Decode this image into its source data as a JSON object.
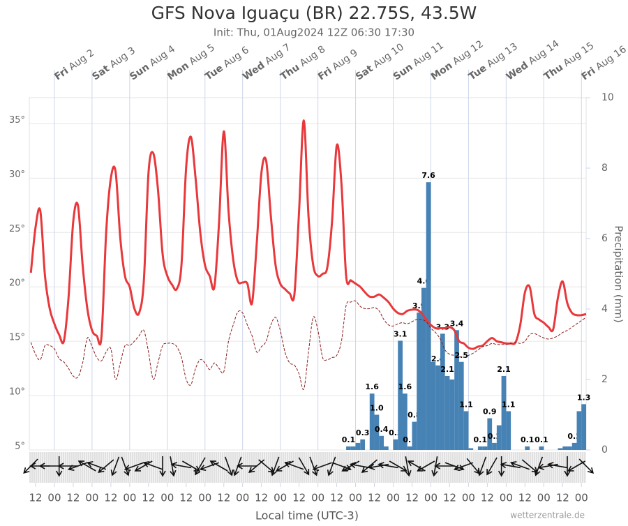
{
  "chart_data": {
    "type": "line",
    "title": "GFS Nova Iguaçu (BR) 22.75S, 43.5W",
    "subtitle": "Init: Thu, 01Aug2024 12Z 06:30 17:30",
    "x_label": "Local time (UTC-3)",
    "y2_label": "Precipitation (mm)",
    "source": "wetterzentrale.de",
    "xlim": [
      8,
      363
    ],
    "ylim": [
      5,
      37.4
    ],
    "y2lim": [
      0,
      10
    ],
    "grid": true,
    "yticks": [
      {
        "value": 5,
        "label": "5°"
      },
      {
        "value": 10,
        "label": "10°"
      },
      {
        "value": 15,
        "label": "15°"
      },
      {
        "value": 20,
        "label": "20°"
      },
      {
        "value": 25,
        "label": "25°"
      },
      {
        "value": 30,
        "label": "30°"
      },
      {
        "value": 35,
        "label": "35°"
      }
    ],
    "y2ticks": [
      0,
      2,
      4,
      6,
      8,
      10
    ],
    "xticks_top": [
      {
        "value": 24,
        "label": "Fri Aug 2"
      },
      {
        "value": 48,
        "label": "Sat Aug 3"
      },
      {
        "value": 72,
        "label": "Sun Aug 4"
      },
      {
        "value": 96,
        "label": "Mon Aug 5"
      },
      {
        "value": 120,
        "label": "Tue Aug 6"
      },
      {
        "value": 144,
        "label": "Wed Aug 7"
      },
      {
        "value": 168,
        "label": "Thu Aug 8"
      },
      {
        "value": 192,
        "label": "Fri Aug 9"
      },
      {
        "value": 216,
        "label": "Sat Aug 10"
      },
      {
        "value": 240,
        "label": "Sun Aug 11"
      },
      {
        "value": 264,
        "label": "Mon Aug 12"
      },
      {
        "value": 288,
        "label": "Tue Aug 13"
      },
      {
        "value": 312,
        "label": "Wed Aug 14"
      },
      {
        "value": 336,
        "label": "Thu Aug 15"
      },
      {
        "value": 360,
        "label": "Fri Aug 16"
      }
    ],
    "xticks": [
      12,
      {
        "value": 24,
        "label": "00"
      },
      {
        "value": 36,
        "label": "12"
      },
      {
        "value": 48,
        "label": "00"
      },
      {
        "value": 60,
        "label": "12"
      },
      {
        "value": 72,
        "label": "00"
      },
      {
        "value": 84,
        "label": "12"
      },
      {
        "value": 96,
        "label": "00"
      },
      {
        "value": 108,
        "label": "12"
      },
      {
        "value": 120,
        "label": "00"
      },
      {
        "value": 132,
        "label": "12"
      },
      {
        "value": 144,
        "label": "00"
      },
      {
        "value": 156,
        "label": "12"
      },
      {
        "value": 168,
        "label": "00"
      },
      {
        "value": 180,
        "label": "12"
      },
      {
        "value": 192,
        "label": "00"
      },
      {
        "value": 204,
        "label": "12"
      },
      {
        "value": 216,
        "label": "00"
      },
      {
        "value": 228,
        "label": "12"
      },
      {
        "value": 240,
        "label": "00"
      },
      {
        "value": 252,
        "label": "12"
      },
      {
        "value": 264,
        "label": "00"
      },
      {
        "value": 276,
        "label": "12"
      },
      {
        "value": 288,
        "label": "00"
      },
      {
        "value": 300,
        "label": "12"
      },
      {
        "value": 312,
        "label": "00"
      },
      {
        "value": 324,
        "label": "12"
      },
      {
        "value": 336,
        "label": "00"
      },
      {
        "value": 348,
        "label": "12"
      },
      {
        "value": 360,
        "label": "00"
      }
    ],
    "series": [
      {
        "type": "line",
        "color": "#e8383b",
        "dashed": false,
        "x": [
          9,
          12,
          15,
          18,
          21,
          24,
          27,
          30,
          33,
          36,
          39,
          42,
          45,
          48,
          51,
          54,
          57,
          60,
          63,
          66,
          69,
          72,
          75,
          78,
          81,
          84,
          87,
          90,
          93,
          96,
          99,
          102,
          105,
          108,
          111,
          114,
          117,
          120,
          123,
          126,
          129,
          132,
          135,
          138,
          141,
          144,
          147,
          150,
          153,
          156,
          159,
          162,
          165,
          168,
          171,
          174,
          177,
          180,
          183,
          186,
          189,
          192,
          195,
          198,
          201,
          204,
          207,
          210,
          213,
          216,
          219,
          222,
          225,
          228,
          231,
          234,
          237,
          240,
          243,
          246,
          249,
          252,
          255,
          258,
          261,
          264,
          267,
          270,
          273,
          276,
          279,
          282,
          285,
          288,
          291,
          294,
          297,
          300,
          303,
          306,
          309,
          312,
          315,
          318,
          321,
          324,
          327,
          330,
          333,
          336,
          339,
          342,
          345,
          348,
          351,
          354,
          357,
          360,
          363
        ],
        "values": [
          21.3,
          25.5,
          27.0,
          21.0,
          18.0,
          16.6,
          15.6,
          15.0,
          19.0,
          26.0,
          27.5,
          22.0,
          18.0,
          16.0,
          15.5,
          15.4,
          25.0,
          30.0,
          30.6,
          24.5,
          21.0,
          20.0,
          18.0,
          17.6,
          20.5,
          30.5,
          32.3,
          29.0,
          23.0,
          21.0,
          20.2,
          19.8,
          22.0,
          31.0,
          33.8,
          30.0,
          25.0,
          22.0,
          21.0,
          20.0,
          26.0,
          34.3,
          27.0,
          22.5,
          20.5,
          20.4,
          20.3,
          18.5,
          24.0,
          30.5,
          31.6,
          26.5,
          22.0,
          20.3,
          19.8,
          19.4,
          19.3,
          27.0,
          35.3,
          26.5,
          22.0,
          21.0,
          21.2,
          21.8,
          26.0,
          33.0,
          29.5,
          21.0,
          20.6,
          20.3,
          20.0,
          19.5,
          19.1,
          19.1,
          19.3,
          19.0,
          18.6,
          18.0,
          17.6,
          17.5,
          17.8,
          17.9,
          17.9,
          17.6,
          17.0,
          16.5,
          16.2,
          16.2,
          16.2,
          16.3,
          16.0,
          15.0,
          14.8,
          14.4,
          14.3,
          14.5,
          14.6,
          15.0,
          15.3,
          15.0,
          14.9,
          14.8,
          14.8,
          14.9,
          16.5,
          19.5,
          20.0,
          17.5,
          17.0,
          16.7,
          16.3,
          16.1,
          19.0,
          20.5,
          18.5,
          17.6,
          17.4,
          17.4,
          17.5
        ]
      },
      {
        "type": "line",
        "color": "#8b1c1c",
        "dashed": true,
        "x": [
          9,
          12,
          15,
          18,
          21,
          24,
          27,
          30,
          33,
          36,
          39,
          42,
          45,
          48,
          51,
          54,
          57,
          60,
          63,
          66,
          69,
          72,
          75,
          78,
          81,
          84,
          87,
          90,
          93,
          96,
          99,
          102,
          105,
          108,
          111,
          114,
          117,
          120,
          123,
          126,
          129,
          132,
          135,
          138,
          141,
          144,
          147,
          150,
          153,
          156,
          159,
          162,
          165,
          168,
          171,
          174,
          177,
          180,
          183,
          186,
          189,
          192,
          195,
          198,
          201,
          204,
          207,
          210,
          213,
          216,
          219,
          222,
          225,
          228,
          231,
          234,
          237,
          240,
          243,
          246,
          249,
          252,
          255,
          258,
          261,
          264,
          267,
          270,
          273,
          276,
          279,
          282,
          285,
          288,
          291,
          294,
          297,
          300,
          303,
          306,
          309,
          312,
          315,
          318,
          321,
          324,
          327,
          330,
          333,
          336,
          339,
          342,
          345,
          348,
          351,
          354,
          357,
          360,
          363
        ],
        "values": [
          14.9,
          13.8,
          13.3,
          14.6,
          14.6,
          14.3,
          13.4,
          13.1,
          12.5,
          11.8,
          11.7,
          13.0,
          15.3,
          14.5,
          13.5,
          13.2,
          14.0,
          14.3,
          11.5,
          13.0,
          14.6,
          14.6,
          15.0,
          15.5,
          16.0,
          14.0,
          11.5,
          13.0,
          14.6,
          14.8,
          14.8,
          14.5,
          13.5,
          11.5,
          11.0,
          12.5,
          13.3,
          13.0,
          12.4,
          13.0,
          12.5,
          12.2,
          15.0,
          16.5,
          17.7,
          17.6,
          16.5,
          15.5,
          14.0,
          14.5,
          15.0,
          16.5,
          17.2,
          16.0,
          14.0,
          13.0,
          12.8,
          12.0,
          10.6,
          14.0,
          17.2,
          16.0,
          13.5,
          13.3,
          13.5,
          13.7,
          15.0,
          18.3,
          18.6,
          18.7,
          18.2,
          18.0,
          18.0,
          18.1,
          17.8,
          17.0,
          16.5,
          16.4,
          16.6,
          16.7,
          16.6,
          16.8,
          17.0,
          17.0,
          16.8,
          16.2,
          15.8,
          15.2,
          14.2,
          13.8,
          13.7,
          13.6,
          13.5,
          13.7,
          13.9,
          14.2,
          14.5,
          14.6,
          14.8,
          14.7,
          14.7,
          14.7,
          14.8,
          14.9,
          14.8,
          15.0,
          15.6,
          15.7,
          15.5,
          15.3,
          15.2,
          15.3,
          15.5,
          15.8,
          16.0,
          16.3,
          16.6,
          16.9,
          17.2
        ]
      },
      {
        "type": "bar",
        "axis": "y2",
        "color": "#4682b4",
        "x": [
          211.5,
          214.5,
          217.5,
          220.5,
          226.5,
          229.5,
          232.5,
          235.5,
          241.5,
          244.5,
          247.5,
          250.5,
          253.5,
          256.5,
          259.5,
          262.5,
          265.5,
          268.5,
          271.5,
          274.5,
          277.5,
          280.5,
          283.5,
          286.5,
          289.5,
          295.5,
          298.5,
          301.5,
          304.5,
          307.5,
          310.5,
          313.5,
          325.5,
          334.5,
          346.5,
          349.5,
          352.5,
          355.5,
          358.5,
          361.5
        ],
        "values": [
          0.1,
          0.1,
          0.2,
          0.3,
          1.6,
          1.0,
          0.4,
          0.1,
          0.3,
          3.1,
          1.6,
          0.1,
          0.8,
          3.9,
          4.6,
          7.6,
          2.5,
          2.4,
          3.3,
          2.1,
          2.0,
          3.4,
          2.5,
          1.1,
          0.05,
          0.1,
          0.1,
          0.9,
          0.2,
          0.7,
          2.1,
          1.1,
          0.1,
          0.1,
          0.05,
          0.1,
          0.1,
          0.2,
          1.1,
          1.3
        ],
        "value_labels": [
          "0.1",
          null,
          null,
          "0.3",
          "1.6",
          "1.0",
          "0.4",
          null,
          "0.3",
          "3.1",
          "1.6",
          "0.1",
          "0.8",
          "3.9",
          "4.6",
          "7.6",
          null,
          "2.4",
          "3.3",
          "2.1",
          null,
          "3.4",
          "2.5",
          "1.1",
          null,
          "0.1",
          null,
          "0.9",
          "0.2",
          null,
          "2.1",
          "1.1",
          "0.1",
          "0.1",
          null,
          null,
          null,
          "0.2",
          null,
          "1.3"
        ]
      }
    ],
    "wind": {
      "x": [
        9,
        15,
        21,
        27,
        33,
        39,
        45,
        51,
        57,
        63,
        69,
        75,
        81,
        87,
        93,
        99,
        105,
        111,
        117,
        123,
        129,
        135,
        141,
        147,
        153,
        159,
        165,
        171,
        177,
        183,
        189,
        195,
        201,
        207,
        213,
        219,
        225,
        231,
        237,
        243,
        249,
        255,
        261,
        267,
        273,
        279,
        285,
        291,
        297,
        303,
        309,
        315,
        321,
        327,
        333,
        339,
        345,
        351,
        357,
        363
      ],
      "values": [
        225,
        270,
        270,
        180,
        270,
        250,
        300,
        290,
        230,
        200,
        160,
        250,
        240,
        290,
        180,
        170,
        280,
        120,
        210,
        250,
        300,
        160,
        200,
        270,
        230,
        130,
        200,
        240,
        290,
        150,
        160,
        250,
        200,
        110,
        240,
        280,
        230,
        260,
        280,
        120,
        170,
        300,
        240,
        190,
        270,
        110,
        250,
        140,
        200,
        210,
        180,
        280,
        290,
        130,
        200,
        260,
        280,
        180,
        240,
        135
      ]
    }
  }
}
